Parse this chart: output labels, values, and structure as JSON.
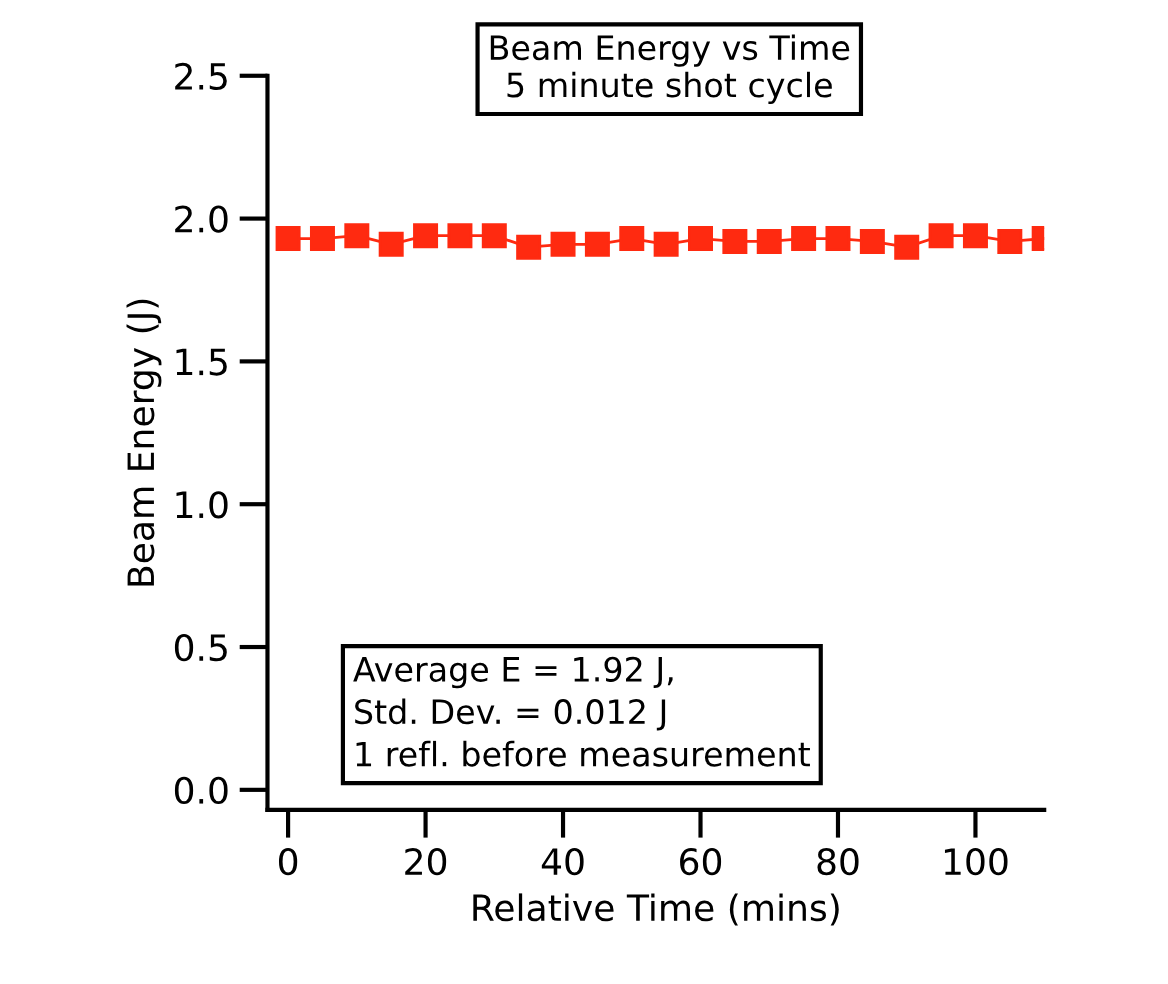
{
  "chart_data": {
    "type": "line",
    "title": "Beam Energy vs Time",
    "subtitle": "5 minute shot cycle",
    "xlabel": "Relative Time (mins)",
    "ylabel": "Beam Energy (J)",
    "x": [
      0,
      5,
      10,
      15,
      20,
      25,
      30,
      35,
      40,
      45,
      50,
      55,
      60,
      65,
      70,
      75,
      80,
      85,
      90,
      95,
      100,
      105,
      110
    ],
    "series": [
      {
        "color": "#ff2a10",
        "values": [
          1.93,
          1.93,
          1.94,
          1.91,
          1.94,
          1.94,
          1.94,
          1.9,
          1.91,
          1.91,
          1.93,
          1.91,
          1.93,
          1.92,
          1.92,
          1.93,
          1.93,
          1.92,
          1.9,
          1.94,
          1.94,
          1.92,
          1.93
        ]
      }
    ],
    "marker": "square",
    "line_style": "solid",
    "xlim": [
      -3,
      110
    ],
    "ylim": [
      -0.07,
      2.5
    ],
    "xticks": [
      0,
      20,
      40,
      60,
      80,
      100
    ],
    "yticks": [
      {
        "value": 0,
        "label": "0.0"
      },
      0.5,
      {
        "value": 1,
        "label": "1.0"
      },
      1.5,
      {
        "value": 2,
        "label": "2.0"
      },
      2.5
    ],
    "annotations": [
      "Average E = 1.92 J,\nStd. Dev. = 0.012 J\n1 refl. before measurement"
    ],
    "grid": false,
    "legend": false
  }
}
